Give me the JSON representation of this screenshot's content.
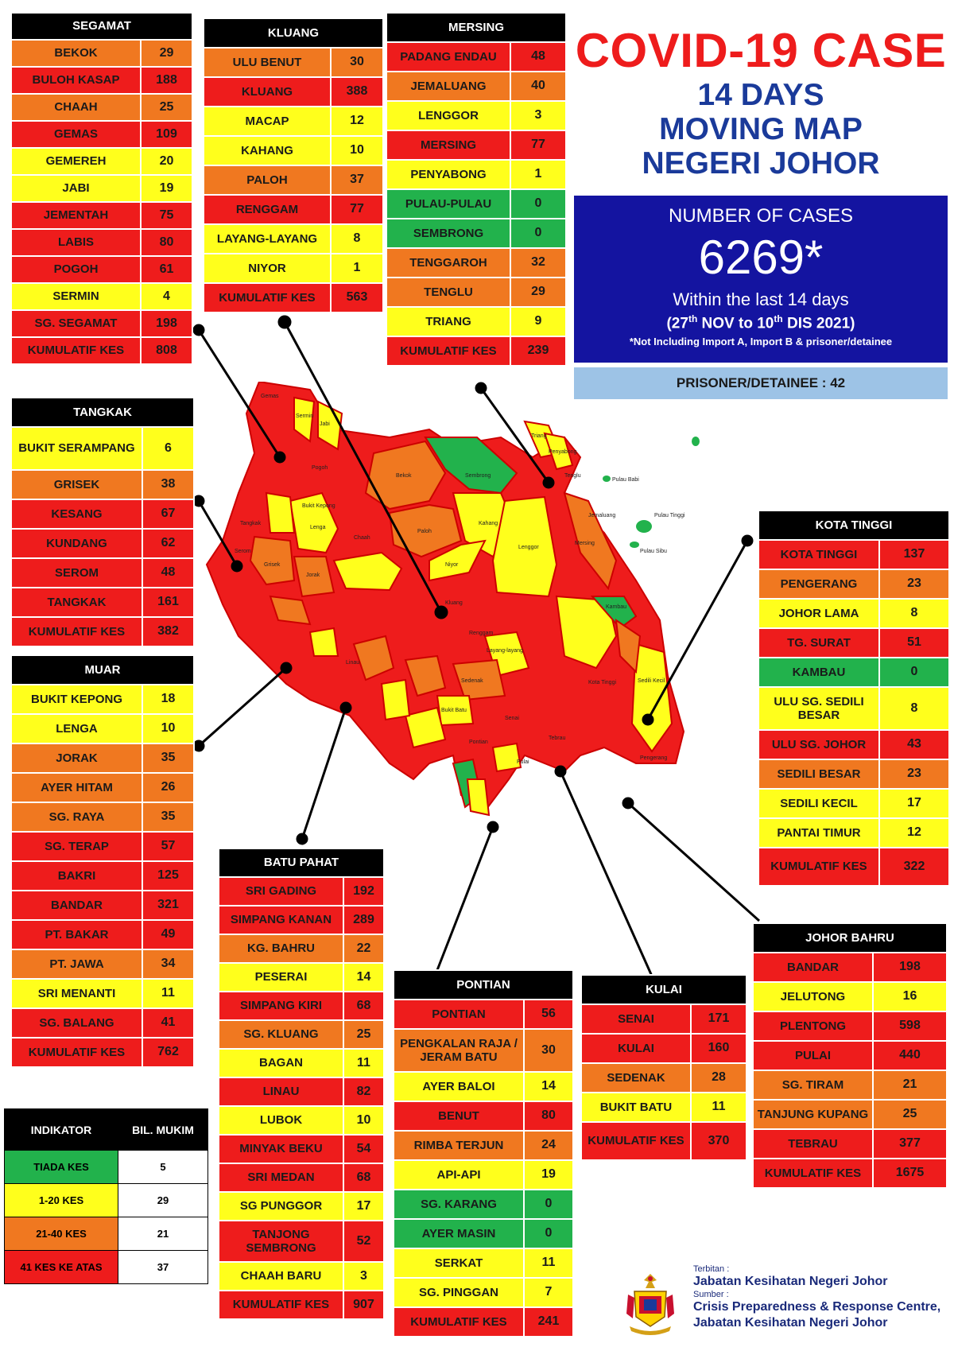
{
  "title": {
    "line1": "COVID-19 CASE",
    "line2": "14 DAYS",
    "line3": "MOVING MAP",
    "line4": "NEGERI JOHOR"
  },
  "summary": {
    "label": "NUMBER OF CASES",
    "total": "6269*",
    "within": "Within the last 14 days",
    "range_open": "(27",
    "range_sup1": "th",
    "range_mid": " NOV to 10",
    "range_sup2": "th",
    "range_end": " DIS 2021)",
    "note": "*Not Including Import A, Import B & prisoner/detainee",
    "prisoner": "PRISONER/DETAINEE : 42"
  },
  "districts": {
    "segamat": {
      "name": "SEGAMAT",
      "rows": [
        {
          "mukim": "BEKOK",
          "cases": 29,
          "color": "org"
        },
        {
          "mukim": "BULOH KASAP",
          "cases": 188,
          "color": "red"
        },
        {
          "mukim": "CHAAH",
          "cases": 25,
          "color": "org"
        },
        {
          "mukim": "GEMAS",
          "cases": 109,
          "color": "red"
        },
        {
          "mukim": "GEMEREH",
          "cases": 20,
          "color": "yel"
        },
        {
          "mukim": "JABI",
          "cases": 19,
          "color": "yel"
        },
        {
          "mukim": "JEMENTAH",
          "cases": 75,
          "color": "red"
        },
        {
          "mukim": "LABIS",
          "cases": 80,
          "color": "red"
        },
        {
          "mukim": "POGOH",
          "cases": 61,
          "color": "red"
        },
        {
          "mukim": "SERMIN",
          "cases": 4,
          "color": "yel"
        },
        {
          "mukim": "SG. SEGAMAT",
          "cases": 198,
          "color": "red"
        }
      ],
      "total_label": "KUMULATIF KES",
      "total": 808
    },
    "kluang": {
      "name": "KLUANG",
      "rows": [
        {
          "mukim": "ULU BENUT",
          "cases": 30,
          "color": "org"
        },
        {
          "mukim": "KLUANG",
          "cases": 388,
          "color": "red"
        },
        {
          "mukim": "MACAP",
          "cases": 12,
          "color": "yel"
        },
        {
          "mukim": "KAHANG",
          "cases": 10,
          "color": "yel"
        },
        {
          "mukim": "PALOH",
          "cases": 37,
          "color": "org"
        },
        {
          "mukim": "RENGGAM",
          "cases": 77,
          "color": "red"
        },
        {
          "mukim": "LAYANG-LAYANG",
          "cases": 8,
          "color": "yel"
        },
        {
          "mukim": "NIYOR",
          "cases": 1,
          "color": "yel"
        }
      ],
      "total_label": "KUMULATIF KES",
      "total": 563
    },
    "mersing": {
      "name": "MERSING",
      "rows": [
        {
          "mukim": "PADANG ENDAU",
          "cases": 48,
          "color": "red"
        },
        {
          "mukim": "JEMALUANG",
          "cases": 40,
          "color": "org"
        },
        {
          "mukim": "LENGGOR",
          "cases": 3,
          "color": "yel"
        },
        {
          "mukim": "MERSING",
          "cases": 77,
          "color": "red"
        },
        {
          "mukim": "PENYABONG",
          "cases": 1,
          "color": "yel"
        },
        {
          "mukim": "PULAU-PULAU",
          "cases": 0,
          "color": "grn"
        },
        {
          "mukim": "SEMBRONG",
          "cases": 0,
          "color": "grn"
        },
        {
          "mukim": "TENGGAROH",
          "cases": 32,
          "color": "org"
        },
        {
          "mukim": "TENGLU",
          "cases": 29,
          "color": "org"
        },
        {
          "mukim": "TRIANG",
          "cases": 9,
          "color": "yel"
        }
      ],
      "total_label": "KUMULATIF KES",
      "total": 239
    },
    "tangkak": {
      "name": "TANGKAK",
      "rows": [
        {
          "mukim": "BUKIT SERAMPANG",
          "cases": 6,
          "color": "yel"
        },
        {
          "mukim": "GRISEK",
          "cases": 38,
          "color": "org"
        },
        {
          "mukim": "KESANG",
          "cases": 67,
          "color": "red"
        },
        {
          "mukim": "KUNDANG",
          "cases": 62,
          "color": "red"
        },
        {
          "mukim": "SEROM",
          "cases": 48,
          "color": "red"
        },
        {
          "mukim": "TANGKAK",
          "cases": 161,
          "color": "red"
        }
      ],
      "total_label": "KUMULATIF KES",
      "total": 382
    },
    "muar": {
      "name": "MUAR",
      "rows": [
        {
          "mukim": "BUKIT KEPONG",
          "cases": 18,
          "color": "yel"
        },
        {
          "mukim": "LENGA",
          "cases": 10,
          "color": "yel"
        },
        {
          "mukim": "JORAK",
          "cases": 35,
          "color": "org"
        },
        {
          "mukim": "AYER HITAM",
          "cases": 26,
          "color": "org"
        },
        {
          "mukim": "SG. RAYA",
          "cases": 35,
          "color": "org"
        },
        {
          "mukim": "SG. TERAP",
          "cases": 57,
          "color": "red"
        },
        {
          "mukim": "BAKRI",
          "cases": 125,
          "color": "red"
        },
        {
          "mukim": "BANDAR",
          "cases": 321,
          "color": "red"
        },
        {
          "mukim": "PT. BAKAR",
          "cases": 49,
          "color": "red"
        },
        {
          "mukim": "PT. JAWA",
          "cases": 34,
          "color": "org"
        },
        {
          "mukim": "SRI MENANTI",
          "cases": 11,
          "color": "yel"
        },
        {
          "mukim": "SG. BALANG",
          "cases": 41,
          "color": "red"
        }
      ],
      "total_label": "KUMULATIF KES",
      "total": 762
    },
    "kota_tinggi": {
      "name": "KOTA TINGGI",
      "rows": [
        {
          "mukim": "KOTA TINGGI",
          "cases": 137,
          "color": "red"
        },
        {
          "mukim": "PENGERANG",
          "cases": 23,
          "color": "org"
        },
        {
          "mukim": "JOHOR LAMA",
          "cases": 8,
          "color": "yel"
        },
        {
          "mukim": "TG. SURAT",
          "cases": 51,
          "color": "red"
        },
        {
          "mukim": "KAMBAU",
          "cases": 0,
          "color": "grn"
        },
        {
          "mukim": "ULU SG. SEDILI BESAR",
          "cases": 8,
          "color": "yel"
        },
        {
          "mukim": "ULU  SG. JOHOR",
          "cases": 43,
          "color": "red"
        },
        {
          "mukim": "SEDILI BESAR",
          "cases": 23,
          "color": "org"
        },
        {
          "mukim": "SEDILI KECIL",
          "cases": 17,
          "color": "yel"
        },
        {
          "mukim": "PANTAI TIMUR",
          "cases": 12,
          "color": "yel"
        }
      ],
      "total_label": "KUMULATIF KES",
      "total": 322
    },
    "batu_pahat": {
      "name": "BATU PAHAT",
      "rows": [
        {
          "mukim": "SRI GADING",
          "cases": 192,
          "color": "red"
        },
        {
          "mukim": "SIMPANG KANAN",
          "cases": 289,
          "color": "red"
        },
        {
          "mukim": "KG. BAHRU",
          "cases": 22,
          "color": "org"
        },
        {
          "mukim": "PESERAI",
          "cases": 14,
          "color": "yel"
        },
        {
          "mukim": "SIMPANG KIRI",
          "cases": 68,
          "color": "red"
        },
        {
          "mukim": "SG. KLUANG",
          "cases": 25,
          "color": "org"
        },
        {
          "mukim": "BAGAN",
          "cases": 11,
          "color": "yel"
        },
        {
          "mukim": "LINAU",
          "cases": 82,
          "color": "red"
        },
        {
          "mukim": "LUBOK",
          "cases": 10,
          "color": "yel"
        },
        {
          "mukim": "MINYAK BEKU",
          "cases": 54,
          "color": "red"
        },
        {
          "mukim": "SRI MEDAN",
          "cases": 68,
          "color": "red"
        },
        {
          "mukim": "SG PUNGGOR",
          "cases": 17,
          "color": "yel"
        },
        {
          "mukim": "TANJONG SEMBRONG",
          "cases": 52,
          "color": "red"
        },
        {
          "mukim": "CHAAH BARU",
          "cases": 3,
          "color": "yel"
        }
      ],
      "total_label": "KUMULATIF KES",
      "total": 907
    },
    "pontian": {
      "name": "PONTIAN",
      "rows": [
        {
          "mukim": "PONTIAN",
          "cases": 56,
          "color": "red"
        },
        {
          "mukim": "PENGKALAN RAJA / JERAM BATU",
          "cases": 30,
          "color": "org"
        },
        {
          "mukim": "AYER BALOI",
          "cases": 14,
          "color": "yel"
        },
        {
          "mukim": "BENUT",
          "cases": 80,
          "color": "red"
        },
        {
          "mukim": "RIMBA TERJUN",
          "cases": 24,
          "color": "org"
        },
        {
          "mukim": "API-API",
          "cases": 19,
          "color": "yel"
        },
        {
          "mukim": "SG. KARANG",
          "cases": 0,
          "color": "grn"
        },
        {
          "mukim": "AYER MASIN",
          "cases": 0,
          "color": "grn"
        },
        {
          "mukim": "SERKAT",
          "cases": 11,
          "color": "yel"
        },
        {
          "mukim": "SG. PINGGAN",
          "cases": 7,
          "color": "yel"
        }
      ],
      "total_label": "KUMULATIF KES",
      "total": 241
    },
    "kulai": {
      "name": "KULAI",
      "rows": [
        {
          "mukim": "SENAI",
          "cases": 171,
          "color": "red"
        },
        {
          "mukim": "KULAI",
          "cases": 160,
          "color": "red"
        },
        {
          "mukim": "SEDENAK",
          "cases": 28,
          "color": "org"
        },
        {
          "mukim": "BUKIT BATU",
          "cases": 11,
          "color": "yel"
        }
      ],
      "total_label": "KUMULATIF KES",
      "total": 370
    },
    "johor_bahru": {
      "name": "JOHOR BAHRU",
      "rows": [
        {
          "mukim": "BANDAR",
          "cases": 198,
          "color": "red"
        },
        {
          "mukim": "JELUTONG",
          "cases": 16,
          "color": "yel"
        },
        {
          "mukim": "PLENTONG",
          "cases": 598,
          "color": "red"
        },
        {
          "mukim": "PULAI",
          "cases": 440,
          "color": "red"
        },
        {
          "mukim": "SG. TIRAM",
          "cases": 21,
          "color": "org"
        },
        {
          "mukim": "TANJUNG KUPANG",
          "cases": 25,
          "color": "org"
        },
        {
          "mukim": "TEBRAU",
          "cases": 377,
          "color": "red"
        }
      ],
      "total_label": "KUMULATIF KES",
      "total": 1675
    }
  },
  "legend": {
    "header_indicator": "INDIKATOR",
    "header_count": "BIL. MUKIM",
    "rows": [
      {
        "label": "TIADA KES",
        "count": 5,
        "color": "grn"
      },
      {
        "label": "1-20 KES",
        "count": 29,
        "color": "yel"
      },
      {
        "label": "21-40 KES",
        "count": 21,
        "color": "org"
      },
      {
        "label": "41 KES KE ATAS",
        "count": 37,
        "color": "red"
      }
    ]
  },
  "footer": {
    "published_label": "Terbitan :",
    "published_by": "Jabatan Kesihatan Negeri Johor",
    "source_label": "Sumber :",
    "source_line1": "Crisis Preparedness & Response Centre,",
    "source_line2": "Jabatan Kesihatan Negeri Johor"
  },
  "map_labels": {
    "bekok": "Bekok",
    "sembrong": "Sembrong",
    "paloh": "Paloh",
    "kahang": "Kahang",
    "lenggor": "Lenggor",
    "niyor": "Niyor",
    "kluang": "Kluang",
    "chaah": "Chaah",
    "lenga": "Lenga",
    "bukit_kepong": "Bukit Kepong",
    "mersing": "Mersing",
    "jemaluang": "Jemaluang",
    "tenglu": "Tenglu",
    "pulau_babi": "Pulau Babi",
    "pulau_tinggi": "Pulau Tinggi",
    "pulau_sibu": "Pulau Sibu",
    "kota_tinggi": "Kota Tinggi",
    "renggam": "Renggam",
    "pengerang": "Pengerang",
    "pontian": "Pontian",
    "pulai": "Pulai",
    "tebrau": "Tebrau",
    "kambau": "Kambau",
    "sedili_kecil": "Sedili Kecil",
    "tangkak": "Tangkak",
    "serom": "Serom",
    "grisek": "Grisek",
    "jorak": "Jorak",
    "gemas": "Gemas",
    "jabi": "Jabi",
    "sermin": "Sermin",
    "pogoh": "Pogoh",
    "triang": "Triang",
    "penyabong": "Penyabong",
    "layang": "Layang-layang",
    "sedenak": "Sedenak",
    "linau": "Linau",
    "senai": "Senai",
    "bukit_batu": "Bukit Batu"
  }
}
